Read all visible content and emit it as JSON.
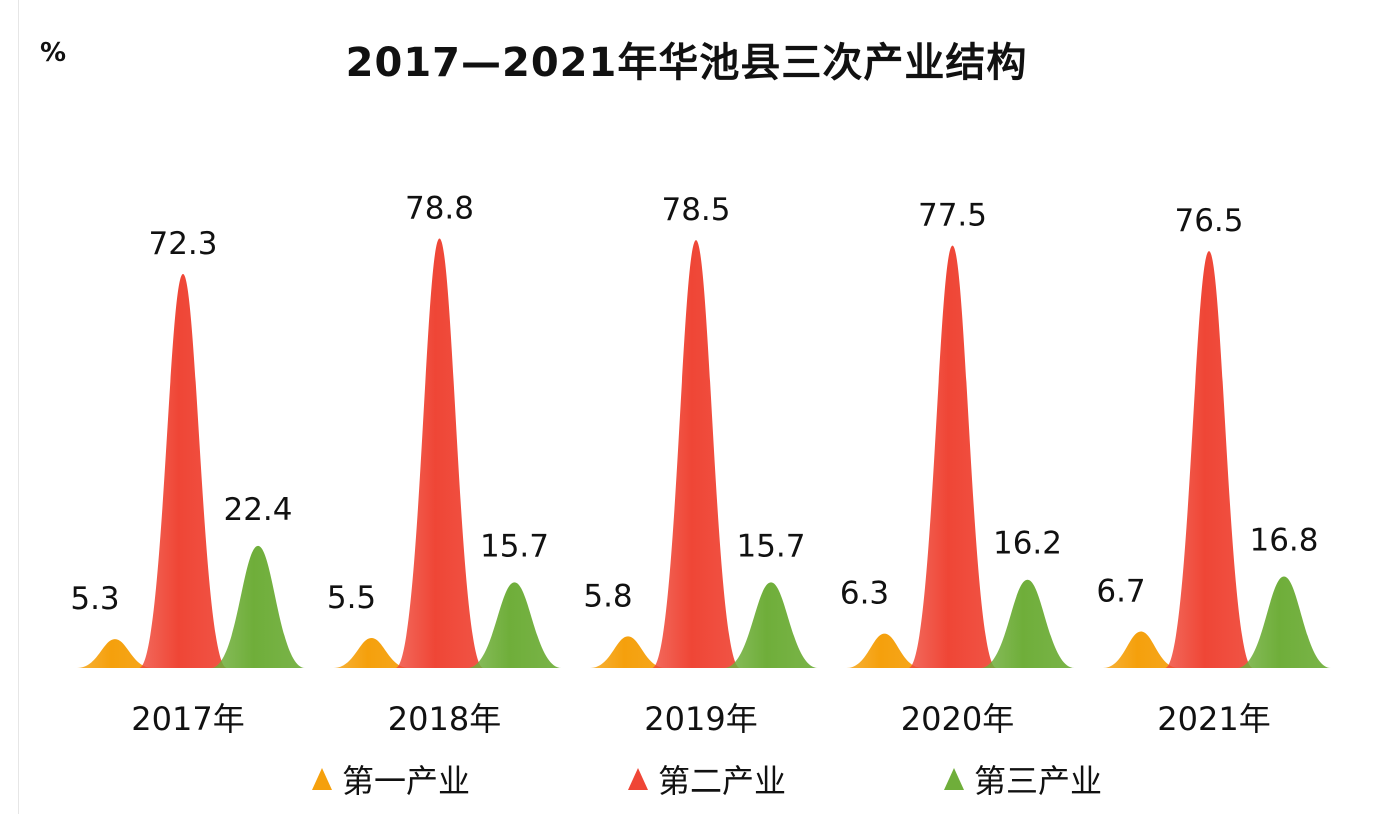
{
  "unit": "%",
  "title": "2017—2021年华池县三次产业结构",
  "colors": {
    "primary": "#f5a00c",
    "secondary": "#ef4636",
    "tertiary": "#6fae3a"
  },
  "legend": [
    {
      "label": "第一产业",
      "color": "#f5a00c",
      "icon": "triangle-icon"
    },
    {
      "label": "第二产业",
      "color": "#ef4636",
      "icon": "triangle-icon"
    },
    {
      "label": "第三产业",
      "color": "#6fae3a",
      "icon": "triangle-icon"
    }
  ],
  "chart_data": {
    "type": "bar",
    "title": "2017—2021年华池县三次产业结构",
    "ylabel": "%",
    "categories": [
      "2017年",
      "2018年",
      "2019年",
      "2020年",
      "2021年"
    ],
    "series": [
      {
        "name": "第一产业",
        "values": [
          5.3,
          5.5,
          5.8,
          6.3,
          6.7
        ]
      },
      {
        "name": "第二产业",
        "values": [
          72.3,
          78.8,
          78.5,
          77.5,
          76.5
        ]
      },
      {
        "name": "第三产业",
        "values": [
          22.4,
          15.7,
          15.7,
          16.2,
          16.8
        ]
      }
    ],
    "value_labels": [
      [
        "5.3",
        "5.5",
        "5.8",
        "6.3",
        "6.7"
      ],
      [
        "72.3",
        "78.8",
        "78.5",
        "77.5",
        "76.5"
      ],
      [
        "22.4",
        "15.7",
        "15.7",
        "16.2",
        "16.8"
      ]
    ],
    "grid": false,
    "legend_position": "bottom"
  }
}
